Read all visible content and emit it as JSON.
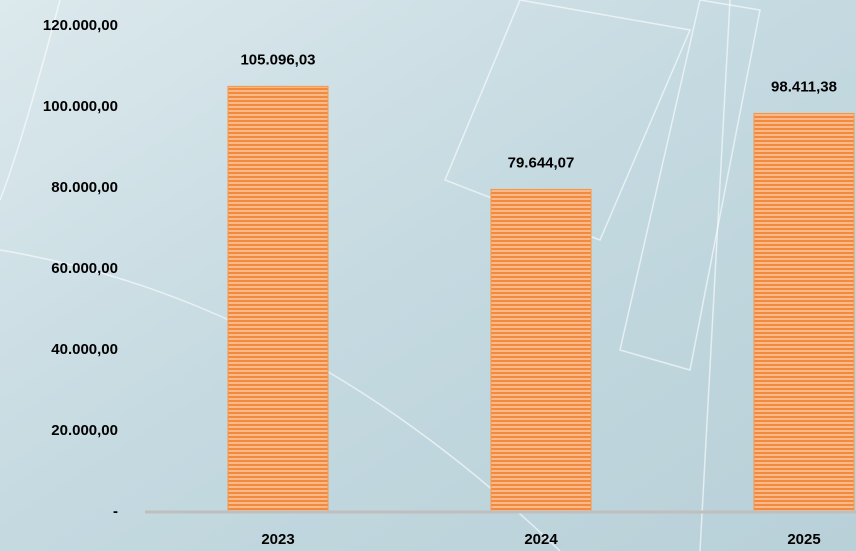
{
  "chart_data": {
    "type": "bar",
    "categories": [
      "2023",
      "2024",
      "2025"
    ],
    "values": [
      105096.03,
      79644.07,
      98411.38
    ],
    "value_labels": [
      "105.096,03",
      "79.644,07",
      "98.411,38"
    ],
    "color": "#f79646",
    "ylim": [
      0,
      120000
    ],
    "yticks": [
      {
        "value": 0,
        "label": "-"
      },
      {
        "value": 20000,
        "label": "20.000,00"
      },
      {
        "value": 40000,
        "label": "40.000,00"
      },
      {
        "value": 60000,
        "label": "60.000,00"
      },
      {
        "value": 80000,
        "label": "80.000,00"
      },
      {
        "value": 100000,
        "label": "100.000,00"
      },
      {
        "value": 120000,
        "label": "120.000,00"
      }
    ],
    "grid": false
  }
}
